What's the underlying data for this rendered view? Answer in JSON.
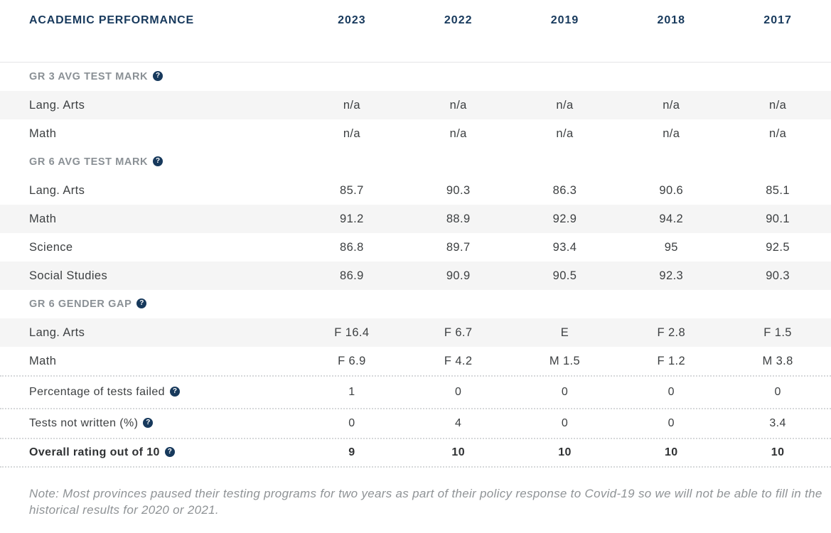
{
  "accent_color": "#17395c",
  "shaded_row_color": "#f5f5f5",
  "icons": {
    "help": "?"
  },
  "header": {
    "title": "ACADEMIC PERFORMANCE",
    "years": [
      "2023",
      "2022",
      "2019",
      "2018",
      "2017"
    ]
  },
  "sections": [
    {
      "label": "GR 3 AVG TEST MARK",
      "rows": [
        {
          "label": "Lang. Arts",
          "values": [
            "n/a",
            "n/a",
            "n/a",
            "n/a",
            "n/a"
          ]
        },
        {
          "label": "Math",
          "values": [
            "n/a",
            "n/a",
            "n/a",
            "n/a",
            "n/a"
          ]
        }
      ]
    },
    {
      "label": "GR 6 AVG TEST MARK",
      "rows": [
        {
          "label": "Lang. Arts",
          "values": [
            "85.7",
            "90.3",
            "86.3",
            "90.6",
            "85.1"
          ]
        },
        {
          "label": "Math",
          "values": [
            "91.2",
            "88.9",
            "92.9",
            "94.2",
            "90.1"
          ]
        },
        {
          "label": "Science",
          "values": [
            "86.8",
            "89.7",
            "93.4",
            "95",
            "92.5"
          ]
        },
        {
          "label": "Social Studies",
          "values": [
            "86.9",
            "90.9",
            "90.5",
            "92.3",
            "90.3"
          ]
        }
      ]
    },
    {
      "label": "GR 6 GENDER GAP",
      "rows": [
        {
          "label": "Lang. Arts",
          "values": [
            "F 16.4",
            "F 6.7",
            "E",
            "F 2.8",
            "F 1.5"
          ]
        },
        {
          "label": "Math",
          "values": [
            "F 6.9",
            "F 4.2",
            "M 1.5",
            "F 1.2",
            "M 3.8"
          ]
        }
      ]
    }
  ],
  "summary": [
    {
      "label": "Percentage of tests failed",
      "values": [
        "1",
        "0",
        "0",
        "0",
        "0"
      ]
    },
    {
      "label": "Tests not written (%)",
      "values": [
        "0",
        "4",
        "0",
        "0",
        "3.4"
      ]
    },
    {
      "label": "Overall rating out of 10",
      "values": [
        "9",
        "10",
        "10",
        "10",
        "10"
      ]
    }
  ],
  "note": "Note: Most provinces paused their testing programs for two years as part of their policy response to Covid-19 so we will not be able to fill in the historical results for 2020 or 2021."
}
